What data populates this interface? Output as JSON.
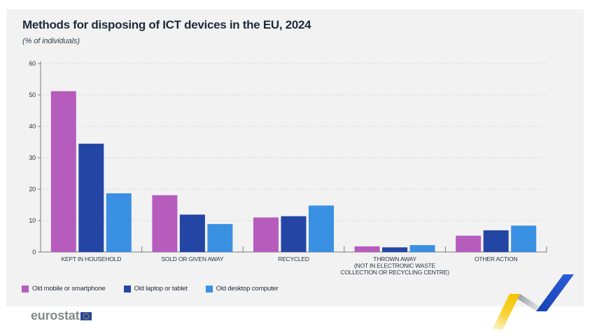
{
  "header": {
    "title": "Methods for disposing of ICT devices in the EU, 2024",
    "subtitle": "(% of individuals)"
  },
  "chart_data": {
    "type": "bar",
    "title": "Methods for disposing of ICT devices in the EU, 2024",
    "subtitle": "(% of individuals)",
    "ylabel": "% of individuals",
    "ylim": [
      0,
      60
    ],
    "yticks": [
      0,
      10,
      20,
      30,
      40,
      50,
      60
    ],
    "grid": "horizontal-dotted",
    "legend_position": "bottom-left",
    "categories": [
      [
        "KEPT IN HOUSEHOLD"
      ],
      [
        "SOLD OR GIVEN AWAY"
      ],
      [
        "RECYCLED"
      ],
      [
        "THROWN AWAY",
        "(NOT IN ELECTRONIC WASTE",
        "COLLECTION OR RECYCLING CENTRE)"
      ],
      [
        "OTHER ACTION"
      ]
    ],
    "series": [
      {
        "name": "Old mobile or smartphone",
        "color": "#B65CBD",
        "values": [
          51.2,
          18.1,
          11.0,
          1.8,
          5.2
        ]
      },
      {
        "name": "Old laptop or tablet",
        "color": "#2346A5",
        "values": [
          34.5,
          11.9,
          11.4,
          1.5,
          6.9
        ]
      },
      {
        "name": "Old desktop computer",
        "color": "#3A90E2",
        "values": [
          18.7,
          8.9,
          14.8,
          2.2,
          8.4
        ]
      }
    ]
  },
  "footer": {
    "logo_text": "eurostat"
  },
  "colors": {
    "panel_bg": "#F2F2F3",
    "title_text": "#1D2A38",
    "axis_text": "#28343F",
    "gridline": "#CBCBCB",
    "axis_line": "#7C7C7C",
    "magenta": "#B65CBD",
    "dark_blue": "#2346A5",
    "light_blue": "#3A90E2",
    "logo_gray": "#85888A",
    "eu_flag_blue": "#24439B",
    "star_yellow": "#F8C800",
    "ribbon_yellow": "#F5C400",
    "ribbon_blue": "#1C4FC7"
  }
}
